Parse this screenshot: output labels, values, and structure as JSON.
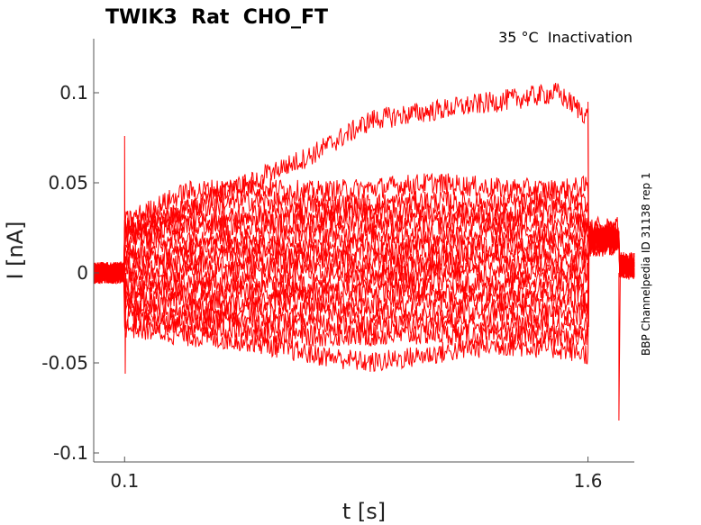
{
  "chart_data": {
    "type": "line",
    "title": "TWIK3  Rat  CHO_FT",
    "annotation": "35 °C  Inactivation",
    "side_label": "BBP Channelpedia ID 31138 rep 1",
    "xlabel": "t [s]",
    "ylabel": "I [nA]",
    "xlim": [
      0.0,
      1.75
    ],
    "ylim": [
      -0.105,
      0.13
    ],
    "xticks": [
      0.1,
      1.6
    ],
    "xtick_labels": [
      "0.1",
      "1.6"
    ],
    "yticks": [
      -0.1,
      -0.05,
      0,
      0.05,
      0.1
    ],
    "ytick_labels": [
      "-0.1",
      "-0.05",
      "0",
      "0.05",
      "0.1"
    ],
    "line_color": "#ff0000",
    "grid": false,
    "pulse": {
      "start": 0.1,
      "end": 1.6
    },
    "traces": [
      {
        "x": [
          0.1,
          0.3,
          0.5,
          0.7,
          0.9,
          1.1,
          1.3,
          1.5,
          1.6
        ],
        "y": [
          0.025,
          0.035,
          0.05,
          0.065,
          0.085,
          0.09,
          0.095,
          0.1,
          0.087
        ]
      },
      {
        "x": [
          0.1,
          0.3,
          0.5,
          0.7,
          0.9,
          1.1,
          1.3,
          1.5,
          1.6
        ],
        "y": [
          0.028,
          0.045,
          0.048,
          0.045,
          0.047,
          0.05,
          0.047,
          0.046,
          0.048
        ]
      },
      {
        "x": [
          0.1,
          0.3,
          0.5,
          0.7,
          0.9,
          1.1,
          1.3,
          1.5,
          1.6
        ],
        "y": [
          0.025,
          0.035,
          0.04,
          0.038,
          0.038,
          0.04,
          0.038,
          0.04,
          0.04
        ]
      },
      {
        "x": [
          0.1,
          0.3,
          0.5,
          0.7,
          0.9,
          1.1,
          1.3,
          1.5,
          1.6
        ],
        "y": [
          0.022,
          0.028,
          0.032,
          0.033,
          0.033,
          0.033,
          0.033,
          0.034,
          0.034
        ]
      },
      {
        "x": [
          0.1,
          0.3,
          0.5,
          0.7,
          0.9,
          1.1,
          1.3,
          1.5,
          1.6
        ],
        "y": [
          0.02,
          0.025,
          0.027,
          0.028,
          0.028,
          0.027,
          0.028,
          0.028,
          0.028
        ]
      },
      {
        "x": [
          0.1,
          0.3,
          0.5,
          0.7,
          0.9,
          1.1,
          1.3,
          1.5,
          1.6
        ],
        "y": [
          0.018,
          0.02,
          0.021,
          0.022,
          0.022,
          0.021,
          0.022,
          0.022,
          0.022
        ]
      },
      {
        "x": [
          0.1,
          0.3,
          0.5,
          0.7,
          0.9,
          1.1,
          1.3,
          1.5,
          1.6
        ],
        "y": [
          0.012,
          0.014,
          0.015,
          0.015,
          0.016,
          0.016,
          0.015,
          0.016,
          0.016
        ]
      },
      {
        "x": [
          0.1,
          0.3,
          0.5,
          0.7,
          0.9,
          1.1,
          1.3,
          1.5,
          1.6
        ],
        "y": [
          0.008,
          0.01,
          0.01,
          0.011,
          0.011,
          0.01,
          0.011,
          0.011,
          0.011
        ]
      },
      {
        "x": [
          0.1,
          0.3,
          0.5,
          0.7,
          0.9,
          1.1,
          1.3,
          1.5,
          1.6
        ],
        "y": [
          0.004,
          0.005,
          0.005,
          0.006,
          0.006,
          0.005,
          0.006,
          0.006,
          0.006
        ]
      },
      {
        "x": [
          0.1,
          0.3,
          0.5,
          0.7,
          0.9,
          1.1,
          1.3,
          1.5,
          1.6
        ],
        "y": [
          0.0,
          0.0,
          0.001,
          0.0,
          0.0,
          0.001,
          0.0,
          0.0,
          0.0
        ]
      },
      {
        "x": [
          0.1,
          0.3,
          0.5,
          0.7,
          0.9,
          1.1,
          1.3,
          1.5,
          1.6
        ],
        "y": [
          -0.004,
          -0.005,
          -0.005,
          -0.006,
          -0.005,
          -0.005,
          -0.006,
          -0.005,
          -0.005
        ]
      },
      {
        "x": [
          0.1,
          0.3,
          0.5,
          0.7,
          0.9,
          1.1,
          1.3,
          1.5,
          1.6
        ],
        "y": [
          -0.008,
          -0.01,
          -0.01,
          -0.011,
          -0.01,
          -0.011,
          -0.011,
          -0.01,
          -0.011
        ]
      },
      {
        "x": [
          0.1,
          0.3,
          0.5,
          0.7,
          0.9,
          1.1,
          1.3,
          1.5,
          1.6
        ],
        "y": [
          -0.012,
          -0.015,
          -0.016,
          -0.016,
          -0.017,
          -0.016,
          -0.016,
          -0.016,
          -0.017
        ]
      },
      {
        "x": [
          0.1,
          0.3,
          0.5,
          0.7,
          0.9,
          1.1,
          1.3,
          1.5,
          1.6
        ],
        "y": [
          -0.016,
          -0.02,
          -0.022,
          -0.022,
          -0.023,
          -0.022,
          -0.022,
          -0.023,
          -0.023
        ]
      },
      {
        "x": [
          0.1,
          0.3,
          0.5,
          0.7,
          0.9,
          1.1,
          1.3,
          1.5,
          1.6
        ],
        "y": [
          -0.02,
          -0.025,
          -0.027,
          -0.028,
          -0.03,
          -0.028,
          -0.028,
          -0.03,
          -0.03
        ]
      },
      {
        "x": [
          0.1,
          0.3,
          0.5,
          0.7,
          0.9,
          1.1,
          1.3,
          1.5,
          1.6
        ],
        "y": [
          -0.025,
          -0.03,
          -0.032,
          -0.035,
          -0.035,
          -0.034,
          -0.035,
          -0.036,
          -0.036
        ]
      },
      {
        "x": [
          0.1,
          0.3,
          0.5,
          0.7,
          0.9,
          1.1,
          1.3,
          1.5,
          1.6
        ],
        "y": [
          -0.03,
          -0.035,
          -0.038,
          -0.045,
          -0.05,
          -0.045,
          -0.04,
          -0.042,
          -0.045
        ]
      }
    ]
  }
}
